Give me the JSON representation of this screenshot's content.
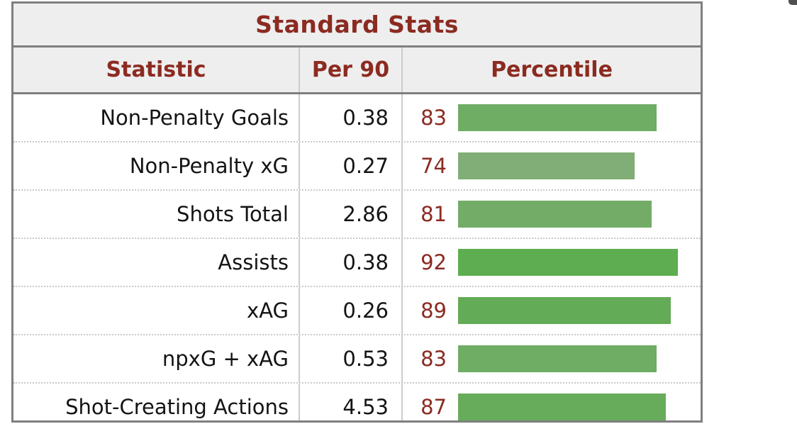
{
  "chart_data": {
    "type": "table",
    "title": "Standard Stats",
    "columns": [
      "Statistic",
      "Per 90",
      "Percentile"
    ],
    "rows": [
      {
        "stat": "Non-Penalty Goals",
        "per90": "0.38",
        "percentile": 83,
        "bar_color": "#6ead63"
      },
      {
        "stat": "Non-Penalty xG",
        "per90": "0.27",
        "percentile": 74,
        "bar_color": "#81ae76"
      },
      {
        "stat": "Shots Total",
        "per90": "2.86",
        "percentile": 81,
        "bar_color": "#72ac67"
      },
      {
        "stat": "Assists",
        "per90": "0.38",
        "percentile": 92,
        "bar_color": "#5ead50"
      },
      {
        "stat": "xAG",
        "per90": "0.26",
        "percentile": 89,
        "bar_color": "#63ab56"
      },
      {
        "stat": "npxG + xAG",
        "per90": "0.53",
        "percentile": 83,
        "bar_color": "#6ead63"
      },
      {
        "stat": "Shot-Creating Actions",
        "per90": "4.53",
        "percentile": 87,
        "bar_color": "#67ac5b"
      }
    ],
    "bar_scale": {
      "min": 0,
      "max": 100
    },
    "colors": {
      "header_text": "#8b2b21",
      "percentile_text": "#8b2b21",
      "header_bg": "#eeeeee",
      "table_border": "#7f7f7f",
      "row_divider": "#cccccc"
    }
  }
}
